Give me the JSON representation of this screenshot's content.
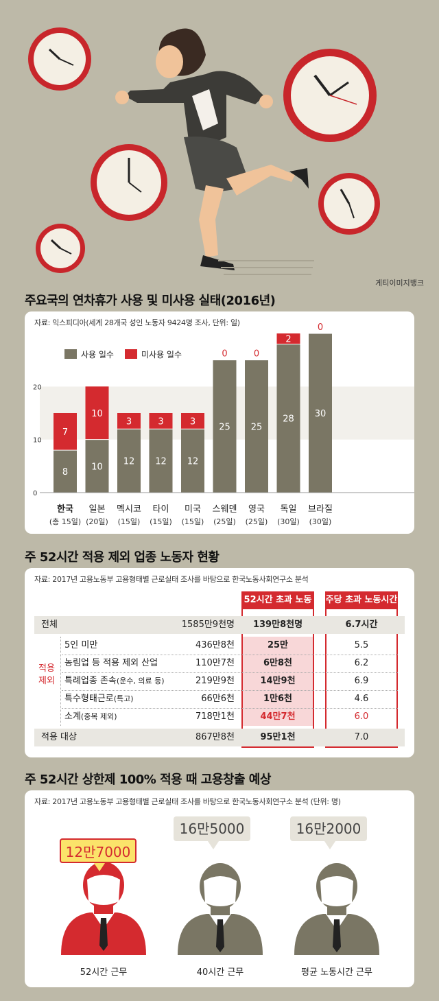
{
  "credit": "게티이미지뱅크",
  "section1": {
    "title": "주요국의 연차휴가 사용 및 미사용 실태(2016년)",
    "source": "자료: 익스피디아(세계 28개국 성인 노동자 9424명 조사, 단위: 일)"
  },
  "chart_data": {
    "type": "bar",
    "stacked": true,
    "ylim": [
      0,
      30
    ],
    "yticks": [
      0,
      10,
      20
    ],
    "categories": [
      "한국",
      "일본",
      "멕시코",
      "타이",
      "미국",
      "스웨덴",
      "영국",
      "독일",
      "브라질"
    ],
    "category_sublabels": [
      "(총 15일)",
      "(20일)",
      "(15일)",
      "(15일)",
      "(15일)",
      "(25일)",
      "(25일)",
      "(30일)",
      "(30일)"
    ],
    "series": [
      {
        "name": "사용 일수",
        "color": "#7a7664",
        "values": [
          8,
          10,
          12,
          12,
          12,
          25,
          25,
          28,
          30
        ]
      },
      {
        "name": "미사용 일수",
        "color": "#d42a2f",
        "values": [
          7,
          10,
          3,
          3,
          3,
          0,
          0,
          2,
          0
        ]
      }
    ],
    "legend": "top-left",
    "grid": false
  },
  "section2": {
    "title": "주 52시간 적용 제외 업종 노동자 현황",
    "source": "자료: 2017년 고용노동부 고용형태별 근로실태 조사를 바탕으로 한국노동사회연구소 분석",
    "col_header_1": "52시간 초과 노동자",
    "col_header_2": "주당 초과 노동시간",
    "group_label": "적용\n제외",
    "rows": [
      {
        "label": "전체",
        "sub": "",
        "total": "1585만9천명",
        "over52": "139만8천명",
        "hours": "6.7시간"
      },
      {
        "label": "5인 미만",
        "sub": "",
        "total": "436만8천",
        "over52": "25만",
        "hours": "5.5"
      },
      {
        "label": "농림업 등 적용 제외 산업",
        "sub": "",
        "total": "110만7천",
        "over52": "6만8천",
        "hours": "6.2"
      },
      {
        "label": "특례업종 존속",
        "sub": "(운수, 의료 등)",
        "total": "219만9천",
        "over52": "14만9천",
        "hours": "6.9"
      },
      {
        "label": "특수형태근로",
        "sub": "(특고)",
        "total": "66만6천",
        "over52": "1만6천",
        "hours": "4.6"
      },
      {
        "label": "소계",
        "sub": "(중복 제외)",
        "total": "718만1천",
        "over52": "44만7천",
        "hours": "6.0"
      },
      {
        "label": "적용 대상",
        "sub": "",
        "total": "867만8천",
        "over52": "95만1천",
        "hours": "7.0"
      }
    ]
  },
  "section3": {
    "title": "주 52시간 상한제 100% 적용 때 고용창출 예상",
    "source": "자료: 2017년 고용노동부 고용형태별 근로실태 조사를 바탕으로 한국노동사회연구소 분석 (단위: 명)",
    "people": [
      {
        "value": "12만7000",
        "label": "52시간 근무",
        "color": "#d42a2f",
        "bubble_color": "#fbe36a"
      },
      {
        "value": "16만5000",
        "label": "40시간 근무",
        "color": "#7a7664",
        "bubble_color": "#e6e3da"
      },
      {
        "value": "16만2000",
        "label": "평균 노동시간 근무",
        "color": "#7a7664",
        "bubble_color": "#e6e3da"
      }
    ]
  }
}
